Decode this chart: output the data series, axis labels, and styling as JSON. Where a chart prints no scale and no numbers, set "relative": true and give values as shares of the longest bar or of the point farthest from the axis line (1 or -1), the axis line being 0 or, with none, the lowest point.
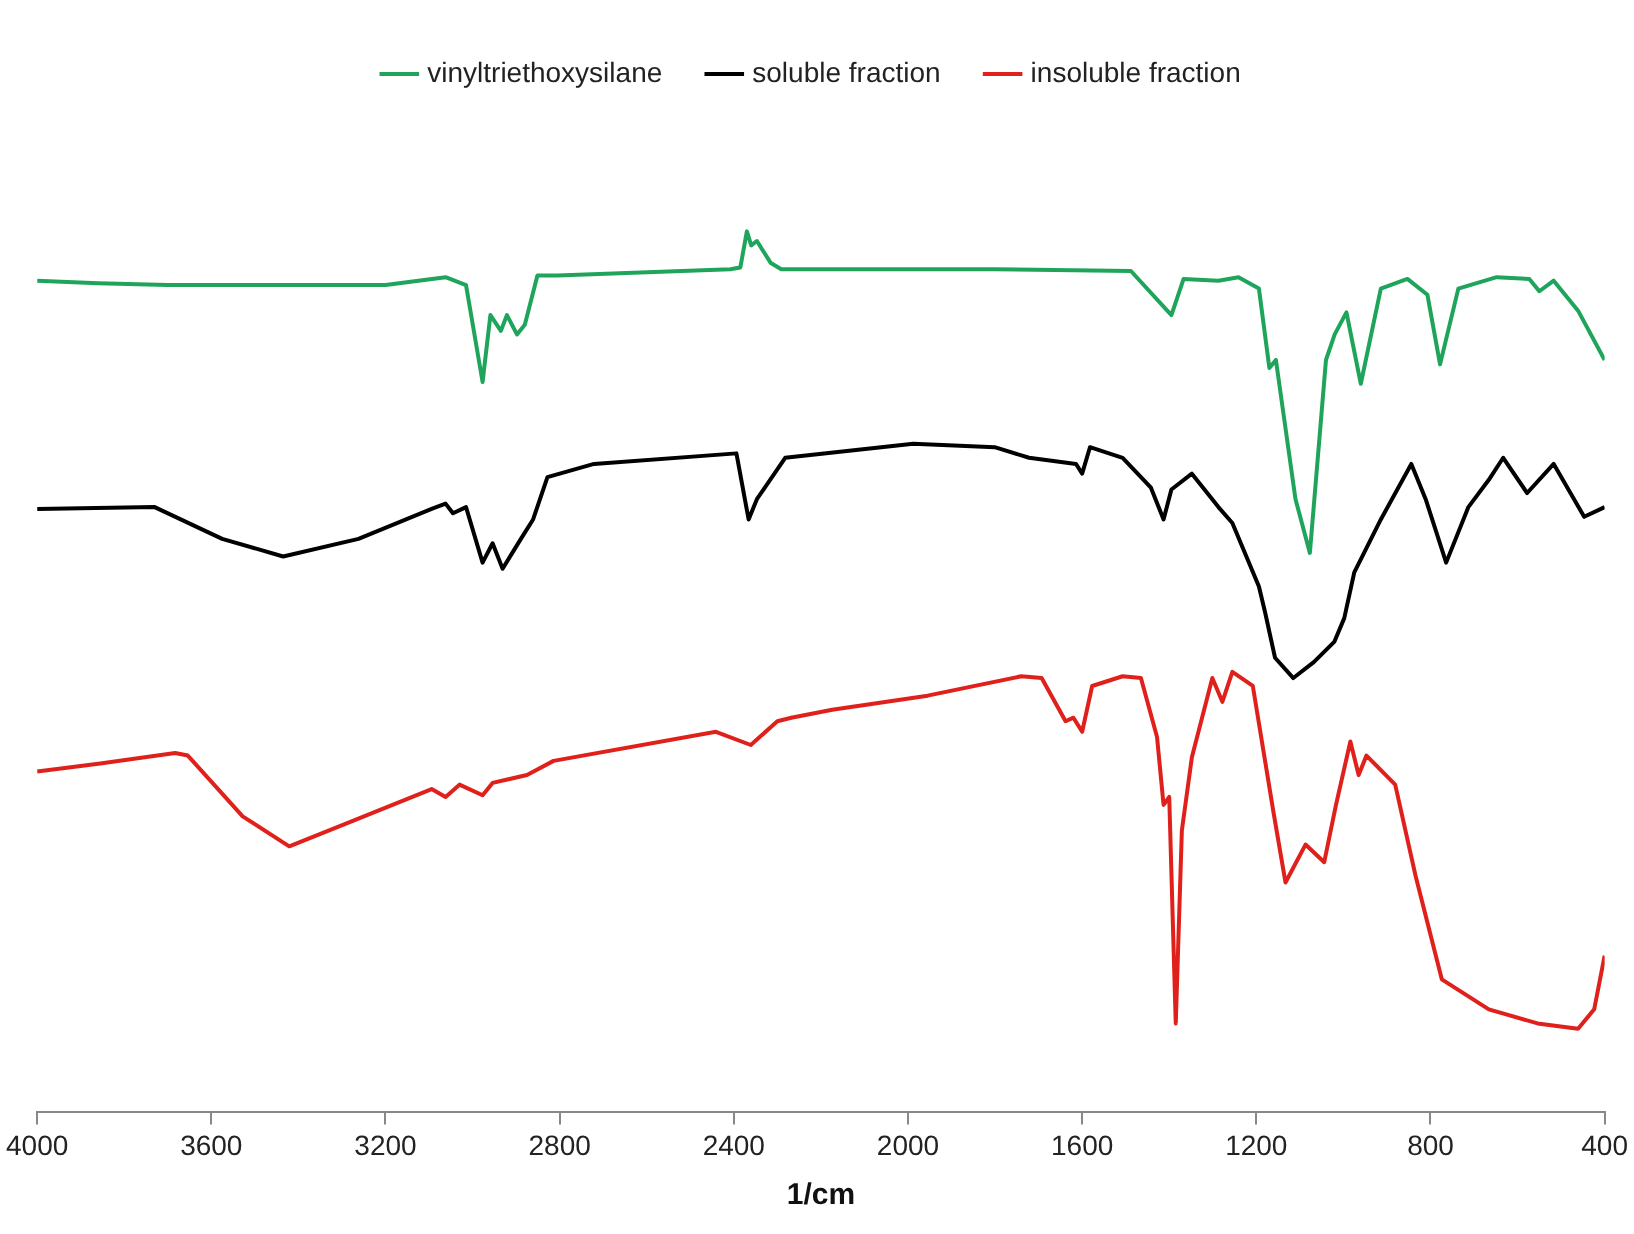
{
  "chart_data": {
    "type": "line",
    "xlabel": "1/cm",
    "relative": true,
    "xlim": [
      4000,
      400
    ],
    "xticks": [
      4000,
      3600,
      3200,
      2800,
      2400,
      2000,
      1600,
      1200,
      800,
      400
    ],
    "grid": false,
    "legend": "top",
    "marker": "none",
    "line_style": "solid",
    "series": [
      {
        "name": "vinyltriethoxysilane",
        "color": "#1fa55b",
        "x": [
          4000,
          3860,
          3700,
          3450,
          3200,
          3062,
          3015,
          2977,
          2959,
          2935,
          2921,
          2898,
          2880,
          2851,
          2805,
          2408,
          2385,
          2370,
          2360,
          2347,
          2315,
          2291,
          2000,
          1801,
          1488,
          1395,
          1367,
          1287,
          1241,
          1194,
          1170,
          1155,
          1110,
          1077,
          1040,
          1020,
          993,
          960,
          914,
          853,
          807,
          778,
          736,
          648,
          573,
          550,
          517,
          461,
          400
        ],
        "values": [
          0.944,
          0.941,
          0.939,
          0.939,
          0.939,
          0.948,
          0.939,
          0.829,
          0.905,
          0.887,
          0.905,
          0.883,
          0.894,
          0.95,
          0.95,
          0.957,
          0.959,
          1.0,
          0.984,
          0.989,
          0.964,
          0.957,
          0.957,
          0.957,
          0.955,
          0.905,
          0.946,
          0.944,
          0.948,
          0.935,
          0.845,
          0.854,
          0.696,
          0.635,
          0.854,
          0.883,
          0.908,
          0.827,
          0.935,
          0.946,
          0.928,
          0.849,
          0.935,
          0.948,
          0.946,
          0.932,
          0.944,
          0.91,
          0.854
        ]
      },
      {
        "name": "soluble fraction",
        "color": "#000000",
        "x": [
          4000,
          3730,
          3575,
          3435,
          3262,
          3094,
          3062,
          3045,
          3015,
          2977,
          2954,
          2931,
          2889,
          2861,
          2828,
          2721,
          2394,
          2366,
          2347,
          2282,
          1988,
          1801,
          1722,
          1614,
          1600,
          1582,
          1507,
          1442,
          1413,
          1395,
          1348,
          1287,
          1255,
          1194,
          1180,
          1157,
          1115,
          1068,
          1021,
          998,
          975,
          914,
          844,
          811,
          764,
          713,
          666,
          633,
          578,
          517,
          447,
          400
        ],
        "values": [
          0.685,
          0.687,
          0.651,
          0.631,
          0.651,
          0.685,
          0.691,
          0.68,
          0.687,
          0.624,
          0.646,
          0.617,
          0.651,
          0.673,
          0.721,
          0.736,
          0.748,
          0.673,
          0.696,
          0.743,
          0.759,
          0.755,
          0.743,
          0.736,
          0.725,
          0.755,
          0.743,
          0.709,
          0.673,
          0.707,
          0.725,
          0.687,
          0.669,
          0.597,
          0.568,
          0.516,
          0.493,
          0.511,
          0.534,
          0.561,
          0.613,
          0.673,
          0.736,
          0.696,
          0.624,
          0.687,
          0.718,
          0.743,
          0.703,
          0.736,
          0.676,
          0.687
        ]
      },
      {
        "name": "insoluble fraction",
        "color": "#e0201b",
        "x": [
          4000,
          3855,
          3683,
          3654,
          3528,
          3421,
          3295,
          3094,
          3062,
          3030,
          2977,
          2954,
          2875,
          2814,
          2441,
          2361,
          2300,
          2268,
          2174,
          1955,
          1740,
          1693,
          1638,
          1620,
          1600,
          1577,
          1507,
          1465,
          1428,
          1413,
          1400,
          1385,
          1371,
          1348,
          1301,
          1278,
          1255,
          1208,
          1161,
          1133,
          1087,
          1044,
          1017,
          984,
          965,
          947,
          881,
          834,
          774,
          666,
          554,
          461,
          424,
          400
        ],
        "values": [
          0.387,
          0.396,
          0.408,
          0.405,
          0.336,
          0.302,
          0.327,
          0.367,
          0.358,
          0.372,
          0.36,
          0.374,
          0.383,
          0.399,
          0.432,
          0.417,
          0.444,
          0.448,
          0.457,
          0.473,
          0.495,
          0.493,
          0.444,
          0.448,
          0.432,
          0.484,
          0.495,
          0.493,
          0.426,
          0.349,
          0.358,
          0.101,
          0.32,
          0.403,
          0.493,
          0.466,
          0.5,
          0.484,
          0.342,
          0.261,
          0.304,
          0.284,
          0.349,
          0.421,
          0.383,
          0.405,
          0.372,
          0.268,
          0.151,
          0.117,
          0.101,
          0.095,
          0.117,
          0.178
        ]
      }
    ]
  }
}
